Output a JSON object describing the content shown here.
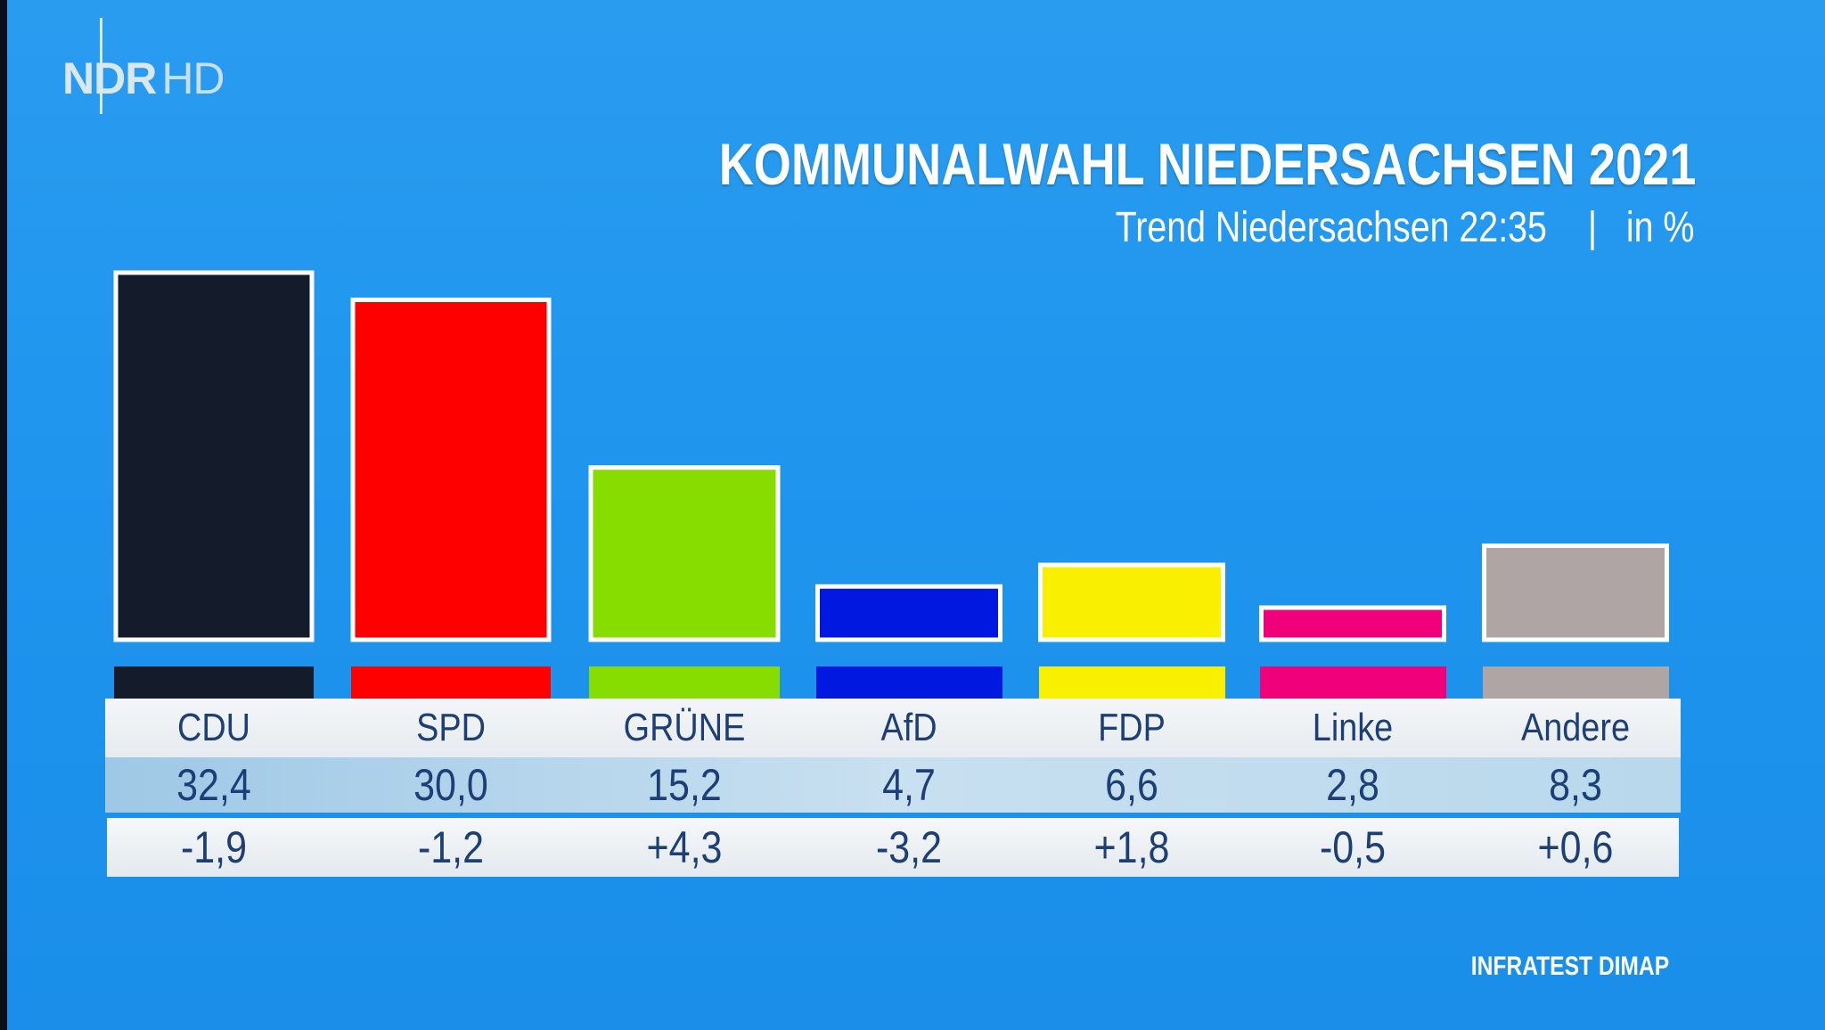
{
  "logo": {
    "main": "NDR",
    "suffix": "HD"
  },
  "title": "KOMMUNALWAHL NIEDERSACHSEN 2021",
  "subtitle": {
    "left": "Trend Niedersachsen 22:35",
    "separator": "|",
    "right": "in %"
  },
  "source": "INFRATEST DIMAP",
  "chart_data": {
    "type": "bar",
    "categories": [
      "CDU",
      "SPD",
      "GRÜNE",
      "AfD",
      "FDP",
      "Linke",
      "Andere"
    ],
    "values": [
      32.4,
      30.0,
      15.2,
      4.7,
      6.6,
      2.8,
      8.3
    ],
    "value_labels": [
      "32,4",
      "30,0",
      "15,2",
      "4,7",
      "6,6",
      "2,8",
      "8,3"
    ],
    "changes": [
      "-1,9",
      "-1,2",
      "+4,3",
      "-3,2",
      "+1,8",
      "-0,5",
      "+0,6"
    ],
    "colors": [
      "#141c2c",
      "#ff0000",
      "#88dd00",
      "#0018e0",
      "#f8f000",
      "#f0007a",
      "#b0a5a5"
    ],
    "title": "KOMMUNALWAHL NIEDERSACHSEN 2021",
    "unit": "in %",
    "ylim": [
      0,
      33
    ],
    "grid": false,
    "legend": "bottom table"
  }
}
